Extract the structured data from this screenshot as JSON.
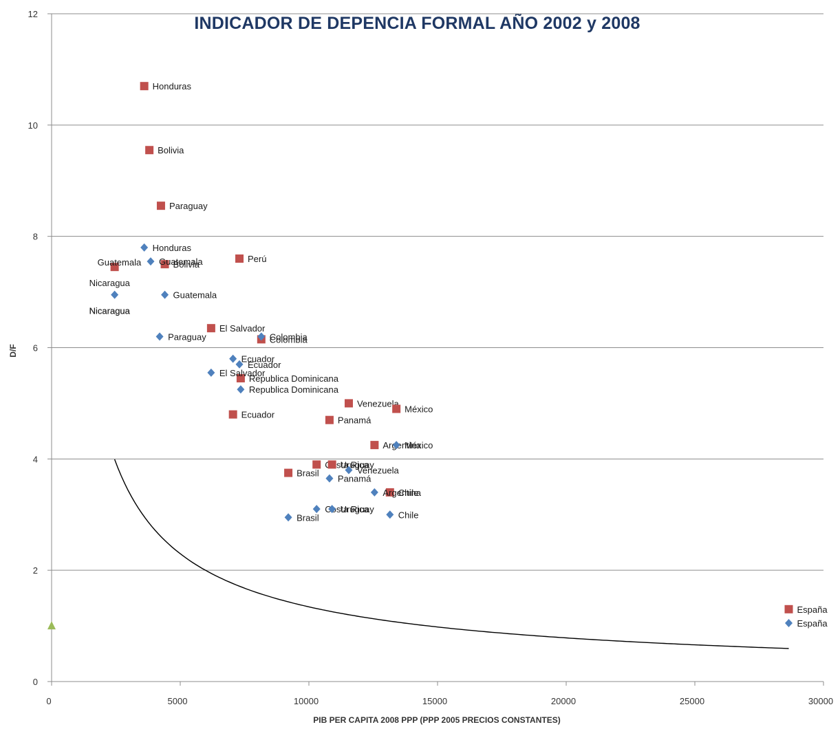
{
  "chart_data": {
    "type": "scatter",
    "title": "INDICADOR DE DEPENCIA FORMAL AÑO 2002  y 2008",
    "xlabel": "PIB PER CAPITA 2008  PPP (PPP 2005 PRECIOS CONSTANTES)",
    "ylabel": "D/F",
    "xlim": [
      0,
      30000
    ],
    "ylim": [
      0,
      12
    ],
    "xticks": [
      "0",
      "5000",
      "10000",
      "15000",
      "20000",
      "25000",
      "30000"
    ],
    "yticks": [
      "0",
      "2",
      "4",
      "6",
      "8",
      "10",
      "12"
    ],
    "grid": "horizontal",
    "colors": {
      "series_a": "#c0504d",
      "series_b": "#4f81bd",
      "series_c": "#9bbb59",
      "trend": "#000000"
    },
    "series": [
      {
        "marker": "square",
        "points": [
          {
            "label": "Honduras",
            "x": 3600,
            "y": 10.7
          },
          {
            "label": "Bolivia",
            "x": 3800,
            "y": 9.55
          },
          {
            "label": "Paraguay",
            "x": 4250,
            "y": 8.55
          },
          {
            "label": "Guatemala",
            "x": 2450,
            "y": 7.45
          },
          {
            "label": "Bolivia",
            "x": 4400,
            "y": 7.5
          },
          {
            "label": "Perú",
            "x": 7300,
            "y": 7.6
          },
          {
            "label": "El Salvador",
            "x": 6200,
            "y": 6.35
          },
          {
            "label": "Colombia",
            "x": 8150,
            "y": 6.15
          },
          {
            "label": "Republica Dominicana",
            "x": 7350,
            "y": 5.45
          },
          {
            "label": "Ecuador",
            "x": 7050,
            "y": 4.8
          },
          {
            "label": "Venezuela",
            "x": 11550,
            "y": 5.0
          },
          {
            "label": "México",
            "x": 13400,
            "y": 4.9
          },
          {
            "label": "Panamá",
            "x": 10800,
            "y": 4.7
          },
          {
            "label": "Argentina",
            "x": 12550,
            "y": 4.25
          },
          {
            "label": "Costa Rica",
            "x": 10300,
            "y": 3.9
          },
          {
            "label": "Uruguay",
            "x": 10900,
            "y": 3.9
          },
          {
            "label": "Brasil",
            "x": 9200,
            "y": 3.75
          },
          {
            "label": "Chile",
            "x": 13150,
            "y": 3.4
          },
          {
            "label": "España",
            "x": 28650,
            "y": 1.3
          }
        ]
      },
      {
        "marker": "diamond",
        "points": [
          {
            "label": "Honduras",
            "x": 3600,
            "y": 7.8
          },
          {
            "label": "Guatemala",
            "x": 3850,
            "y": 7.55
          },
          {
            "label": "Nicaragua",
            "x": 2450,
            "y": 6.95
          },
          {
            "label": "Guatemala",
            "x": 4400,
            "y": 6.95
          },
          {
            "label": "Paraguay",
            "x": 4200,
            "y": 6.2
          },
          {
            "label": "Colombia",
            "x": 8150,
            "y": 6.2
          },
          {
            "label": "Ecuador",
            "x": 7050,
            "y": 5.8
          },
          {
            "label": "Ecuador",
            "x": 7300,
            "y": 5.7
          },
          {
            "label": "El Salvador",
            "x": 6200,
            "y": 5.55
          },
          {
            "label": "Republica Dominicana",
            "x": 7350,
            "y": 5.25
          },
          {
            "label": "México",
            "x": 13400,
            "y": 4.25
          },
          {
            "label": "Venezuela",
            "x": 11550,
            "y": 3.8
          },
          {
            "label": "Panamá",
            "x": 10800,
            "y": 3.65
          },
          {
            "label": "Argentina",
            "x": 12550,
            "y": 3.4
          },
          {
            "label": "Costa Rica",
            "x": 10300,
            "y": 3.1
          },
          {
            "label": "Uruguay",
            "x": 10900,
            "y": 3.1
          },
          {
            "label": "Brasil",
            "x": 9200,
            "y": 2.95
          },
          {
            "label": "Chile",
            "x": 13150,
            "y": 3.0
          },
          {
            "label": "España",
            "x": 28650,
            "y": 1.05
          }
        ]
      },
      {
        "marker": "triangle",
        "points": [
          {
            "label": "",
            "x": 0,
            "y": 1.0
          }
        ]
      }
    ],
    "trendline": {
      "kind": "power",
      "coefficient": 1690,
      "exponent": -0.775,
      "x_range": [
        2450,
        28650
      ]
    },
    "extra_labels": [
      {
        "text": "Nicaragua",
        "x": 2450,
        "y": 7.45
      },
      {
        "text": "Nicaragua",
        "x": 2450,
        "y": 6.95
      }
    ]
  }
}
